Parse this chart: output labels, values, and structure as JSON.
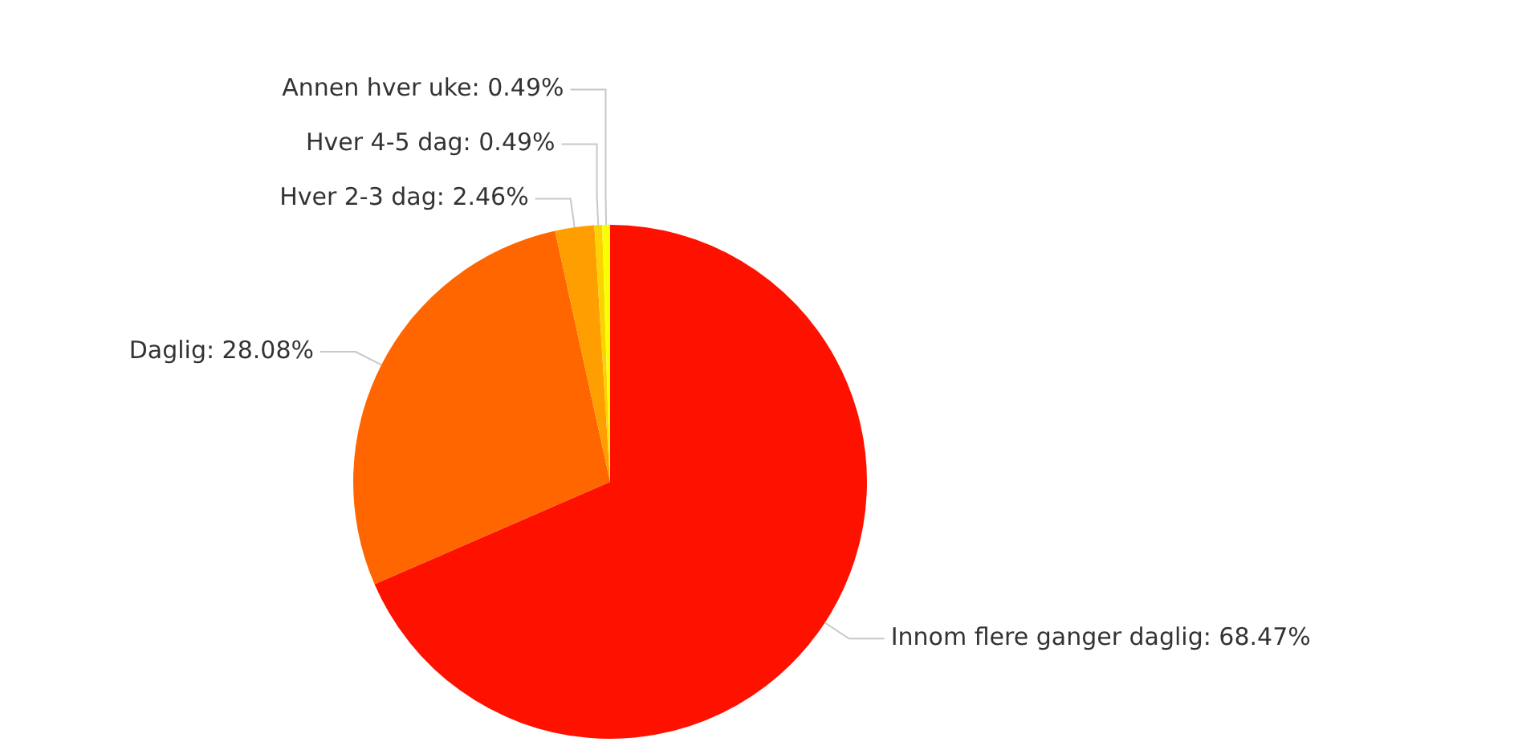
{
  "chart_data": {
    "type": "pie",
    "categories": [
      "Innom flere ganger daglig",
      "Daglig",
      "Hver 2-3 dag",
      "Hver 4-5 dag",
      "Annen hver uke"
    ],
    "values": [
      68.47,
      28.08,
      2.46,
      0.49,
      0.49
    ],
    "value_labels": [
      "68.47%",
      "28.08%",
      "2.46%",
      "0.49%",
      "0.49%"
    ],
    "colors": [
      "#ff1100",
      "#ff6600",
      "#ff9e01",
      "#fcd202",
      "#f8ff01"
    ],
    "data_labels": true,
    "legend": false
  }
}
